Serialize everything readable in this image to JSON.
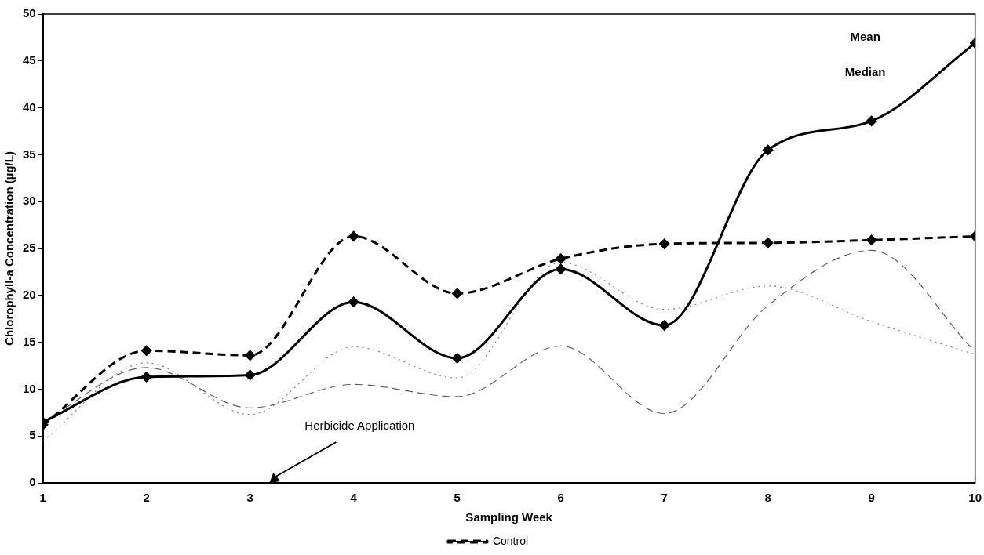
{
  "chart_data": {
    "type": "line",
    "xlabel": "Sampling Week",
    "ylabel": "Chlorophyll-a Concentration (µg/L)",
    "x": [
      1,
      2,
      3,
      4,
      5,
      6,
      7,
      8,
      9,
      10
    ],
    "xlim": [
      1,
      10
    ],
    "xticks": [
      1,
      2,
      3,
      4,
      5,
      6,
      7,
      8,
      9,
      10
    ],
    "ylim": [
      0,
      50
    ],
    "yticks": [
      0,
      5,
      10,
      15,
      20,
      25,
      30,
      35,
      40,
      45,
      50
    ],
    "grid": false,
    "legend": "bottom",
    "series": [
      {
        "name": "Control",
        "color": "#000000",
        "line_style": "dashed",
        "marker": "diamond",
        "values": [
          6.2,
          14.1,
          13.6,
          26.3,
          20.2,
          23.9,
          25.5,
          25.6,
          25.9,
          26.3
        ]
      },
      {
        "color": "#000000",
        "line_style": "solid",
        "marker": "diamond",
        "values": [
          6.5,
          11.3,
          11.5,
          19.3,
          13.3,
          22.8,
          16.8,
          35.5,
          38.6,
          46.9
        ]
      },
      {
        "color": "#808080",
        "line_style": "dotted",
        "marker": "none",
        "values": [
          4.5,
          12.8,
          7.3,
          14.5,
          11.2,
          23.5,
          18.5,
          21,
          17.2,
          13.7
        ]
      },
      {
        "color": "#606060",
        "line_style": "dashed",
        "marker": "none",
        "values": [
          6.5,
          12.3,
          8,
          10.5,
          9.2,
          14.6,
          7.4,
          18.9,
          24.8,
          14
        ]
      }
    ],
    "annotations": [
      "Mean",
      "Median",
      "Herbicide Application"
    ]
  }
}
